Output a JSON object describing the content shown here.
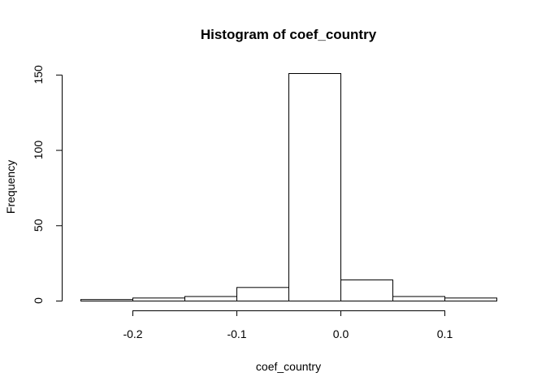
{
  "chart_data": {
    "type": "bar",
    "title": "Histogram of coef_country",
    "xlabel": "coef_country",
    "ylabel": "Frequency",
    "bins": [
      {
        "x0": -0.25,
        "x1": -0.2,
        "count": 1
      },
      {
        "x0": -0.2,
        "x1": -0.15,
        "count": 2
      },
      {
        "x0": -0.15,
        "x1": -0.1,
        "count": 3
      },
      {
        "x0": -0.1,
        "x1": -0.05,
        "count": 9
      },
      {
        "x0": -0.05,
        "x1": 0.0,
        "count": 151
      },
      {
        "x0": 0.0,
        "x1": 0.05,
        "count": 14
      },
      {
        "x0": 0.05,
        "x1": 0.1,
        "count": 3
      },
      {
        "x0": 0.1,
        "x1": 0.15,
        "count": 2
      }
    ],
    "xticks": [
      -0.2,
      -0.1,
      0.0,
      0.1
    ],
    "xtick_labels": [
      "-0.2",
      "-0.1",
      "0.0",
      "0.1"
    ],
    "yticks": [
      0,
      50,
      100,
      150
    ],
    "ytick_labels": [
      "0",
      "50",
      "100",
      "150"
    ],
    "xlim": [
      -0.25,
      0.15
    ],
    "ylim": [
      0,
      151
    ],
    "grid": false
  }
}
